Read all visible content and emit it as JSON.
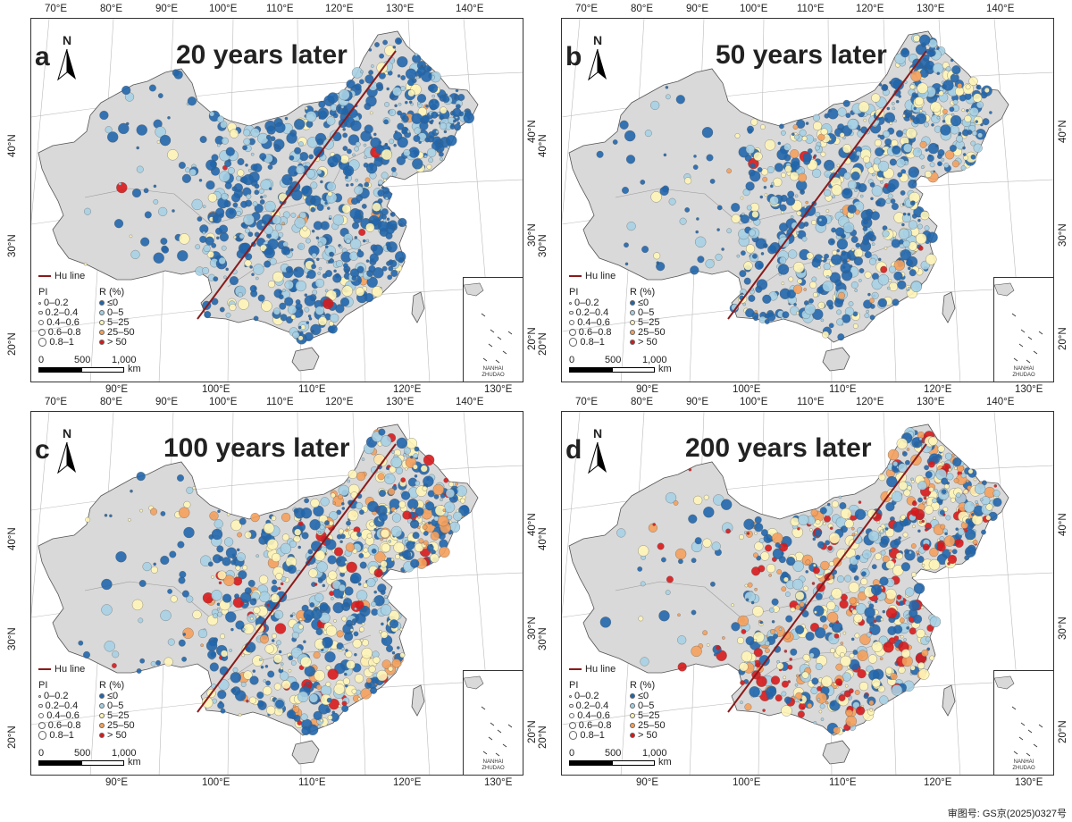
{
  "panels": [
    {
      "label": "a",
      "title": "20 years later"
    },
    {
      "label": "b",
      "title": "50 years later"
    },
    {
      "label": "c",
      "title": "100 years later"
    },
    {
      "label": "d",
      "title": "200 years later"
    }
  ],
  "north_label": "N",
  "legend": {
    "hu_line": "Hu line",
    "pi_title": "PI",
    "pi_classes": [
      "0–0.2",
      "0.2–0.4",
      "0.4–0.6",
      "0.6–0.8",
      "0.8–1"
    ],
    "r_title": "R (%)",
    "r_classes": [
      "≤0",
      "0–5",
      "5–25",
      "25–50",
      "> 50"
    ],
    "r_colors": [
      "#2166ac",
      "#a6d0e4",
      "#fff5b8",
      "#f4a05c",
      "#d7191c"
    ]
  },
  "scalebar": {
    "ticks": [
      "0",
      "500",
      "1,000"
    ],
    "unit": "km"
  },
  "inset_caption": [
    "NANHAI",
    "ZHUDAO"
  ],
  "top_lon_ticks": [
    "70°E",
    "80°E",
    "90°E",
    "100°E",
    "110°E",
    "120°E",
    "130°E",
    "140°E"
  ],
  "bottom_lon_ticks": [
    "90°E",
    "100°E",
    "110°E",
    "120°E",
    "130°E"
  ],
  "left_lat_ticks": [
    "40°N",
    "30°N",
    "20°N"
  ],
  "right_lat_ticks": [
    "40°N",
    "30°N",
    "20°N"
  ],
  "review_number": "审图号: GS京(2025)0327号",
  "hu_line_color": "#8b1a1a",
  "land_color": "#d9d9d9"
}
